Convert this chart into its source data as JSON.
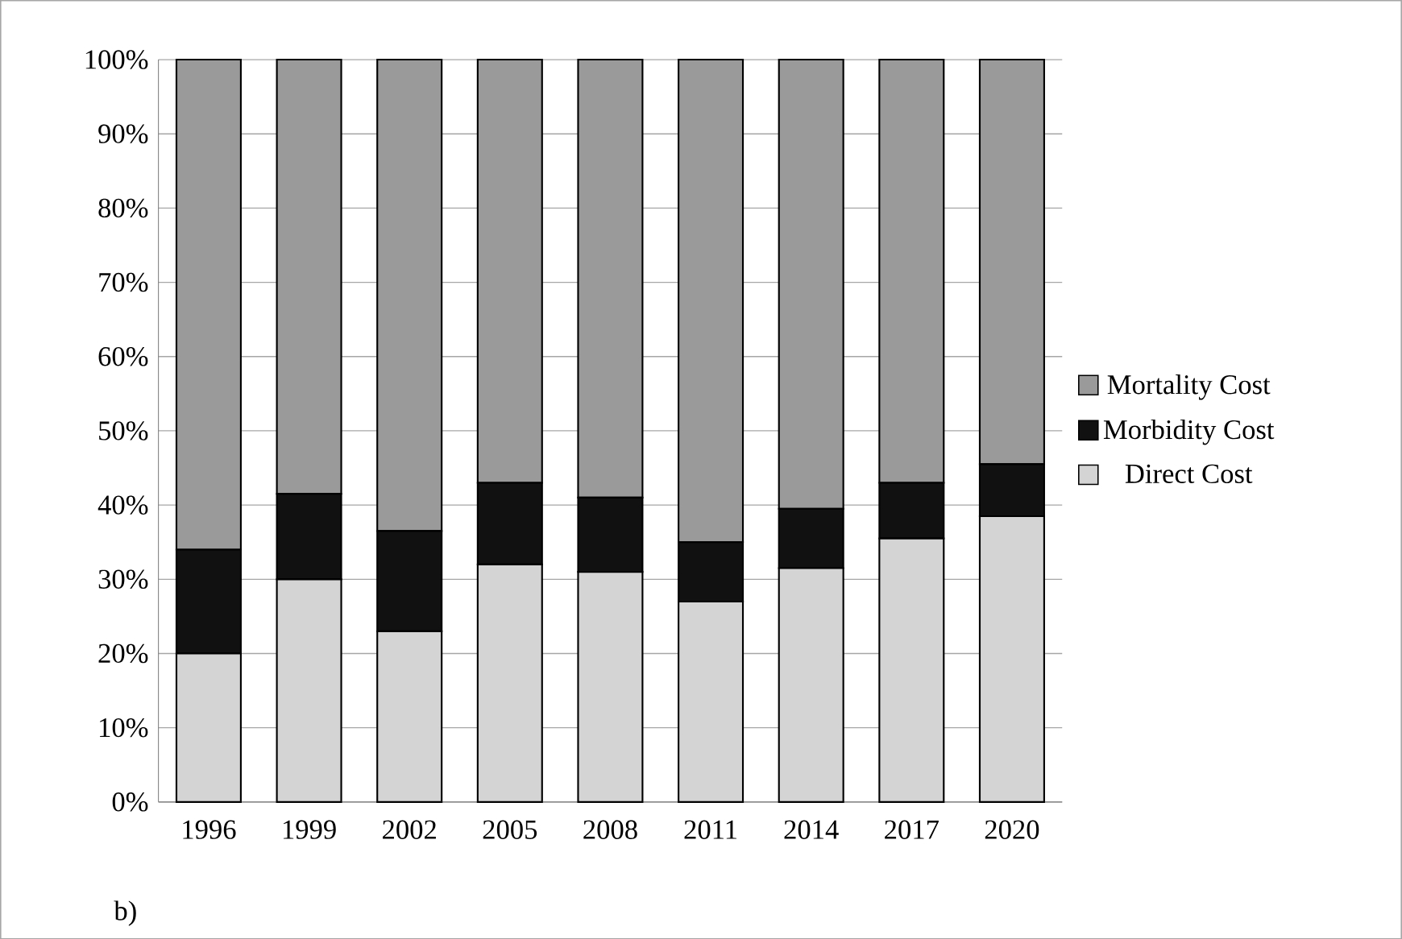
{
  "chart_data": {
    "type": "bar",
    "stacked": true,
    "categories": [
      "1996",
      "1999",
      "2002",
      "2005",
      "2008",
      "2011",
      "2014",
      "2017",
      "2020"
    ],
    "series": [
      {
        "name": "Direct Cost",
        "color": "#d4d4d4",
        "values": [
          20,
          30,
          23,
          32,
          31,
          27,
          31.5,
          35.5,
          38.5
        ]
      },
      {
        "name": "Morbidity Cost",
        "color": "#111111",
        "values": [
          14,
          11.5,
          13.5,
          11,
          10,
          8,
          8,
          7.5,
          7
        ]
      },
      {
        "name": "Mortality Cost",
        "color": "#9a9a9a",
        "values": [
          66,
          58.5,
          63.5,
          57,
          59,
          65,
          60.5,
          57,
          54.5
        ]
      }
    ],
    "ylim": [
      0,
      100
    ],
    "yticks": [
      {
        "value": 0,
        "label": "0%"
      },
      {
        "value": 10,
        "label": "10%"
      },
      {
        "value": 20,
        "label": "20%"
      },
      {
        "value": 30,
        "label": "30%"
      },
      {
        "value": 40,
        "label": "40%"
      },
      {
        "value": 50,
        "label": "50%"
      },
      {
        "value": 60,
        "label": "60%"
      },
      {
        "value": 70,
        "label": "70%"
      },
      {
        "value": 80,
        "label": "80%"
      },
      {
        "value": 90,
        "label": "90%"
      },
      {
        "value": 100,
        "label": "100%"
      }
    ],
    "grid": "y",
    "legend": "right",
    "annotations": [
      "b)"
    ]
  }
}
